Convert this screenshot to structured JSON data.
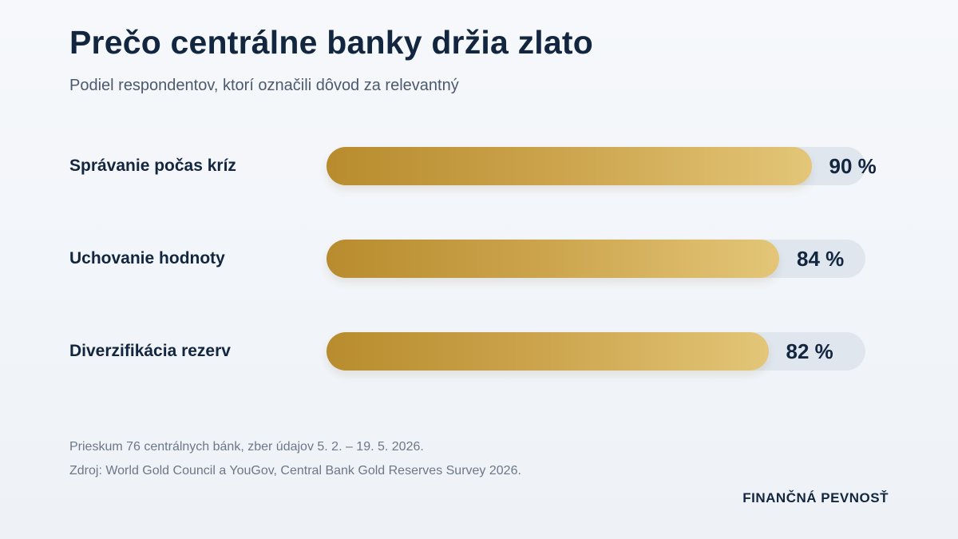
{
  "header": {
    "title": "Prečo centrálne banky držia zlato",
    "subtitle": "Podiel respondentov, ktorí označili dôvod za relevantný"
  },
  "chart_data": {
    "type": "bar",
    "orientation": "horizontal",
    "categories": [
      "Správanie počas kríz",
      "Uchovanie hodnoty",
      "Diverzifikácia rezerv"
    ],
    "values": [
      90,
      84,
      82
    ],
    "value_labels": [
      "90 %",
      "84 %",
      "82 %"
    ],
    "xlim": [
      0,
      100
    ],
    "colors": {
      "bar_start": "#b88c2e",
      "bar_end": "#e3c678",
      "track": "#dfe6ee",
      "text": "#13263f"
    }
  },
  "footer": {
    "note": "Prieskum 76 centrálnych bánk, zber údajov 5. 2. – 19. 5. 2026.",
    "source": "Zdroj: World Gold Council a YouGov, Central Bank Gold Reserves Survey 2026.",
    "brand": "FINANČNÁ PEVNOSŤ"
  }
}
